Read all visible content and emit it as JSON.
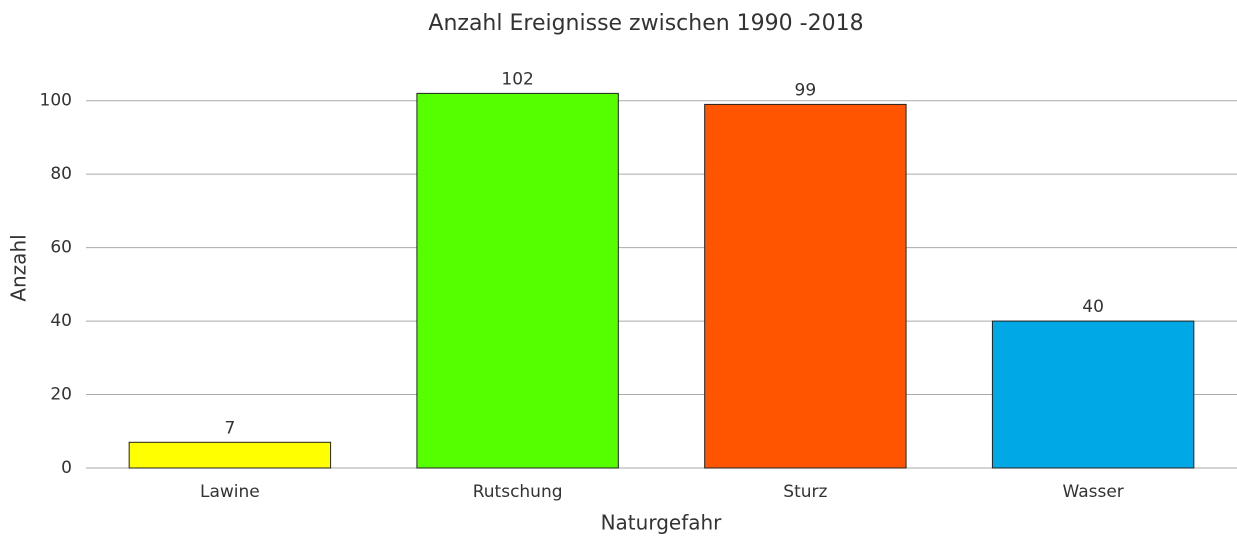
{
  "chart_data": {
    "type": "bar",
    "title": "Anzahl Ereignisse zwischen 1990 -2018",
    "x_label": "Naturgefahr",
    "y_label": "Anzahl",
    "categories": [
      "Lawine",
      "Rutschung",
      "Sturz",
      "Wasser"
    ],
    "values": [
      7,
      102,
      99,
      40
    ],
    "colors": [
      "#ffff00",
      "#55ff00",
      "#ff5500",
      "#00a8e6"
    ],
    "ylim": [
      0,
      110
    ],
    "yticks": [
      0,
      20,
      40,
      60,
      80,
      100
    ],
    "grid": true
  }
}
